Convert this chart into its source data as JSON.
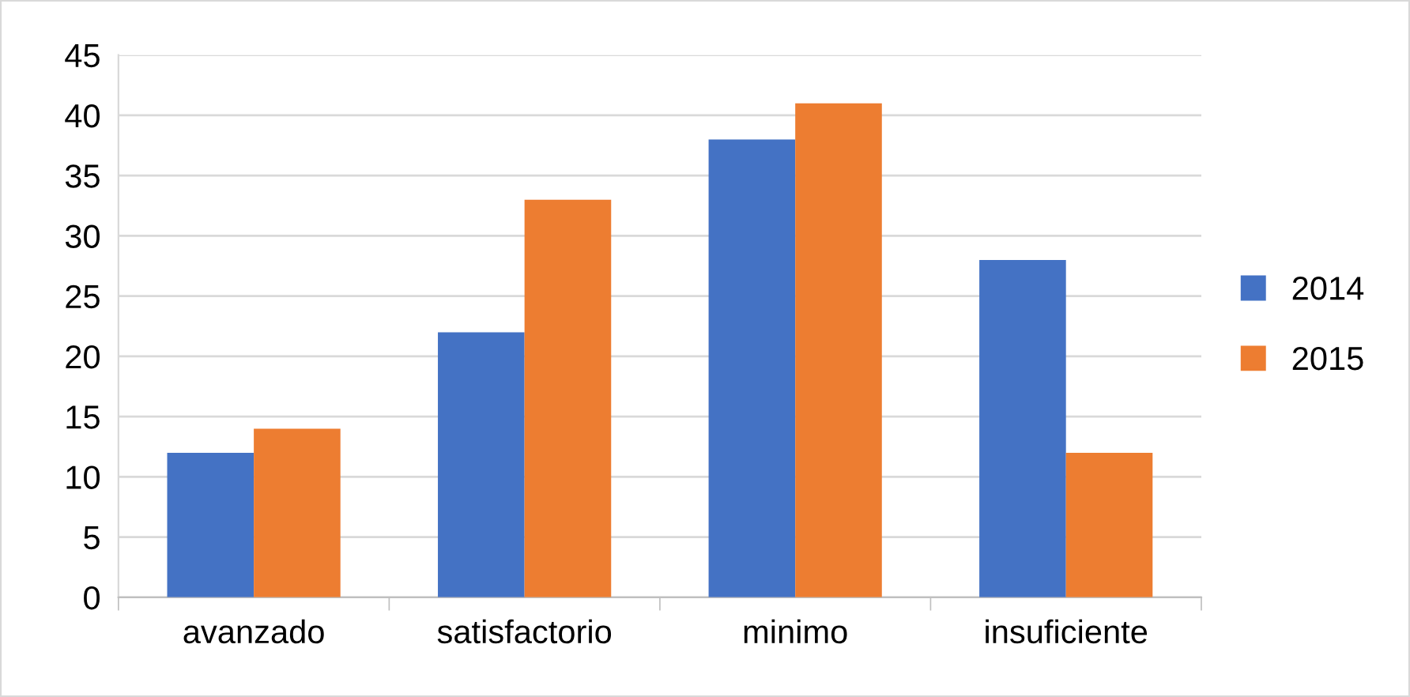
{
  "chart_data": {
    "type": "bar",
    "categories": [
      "avanzado",
      "satisfactorio",
      "minimo",
      "insuficiente"
    ],
    "series": [
      {
        "name": "2014",
        "color": "#4472c4",
        "values": [
          12,
          22,
          38,
          28
        ]
      },
      {
        "name": "2015",
        "color": "#ed7d31",
        "values": [
          14,
          33,
          41,
          12
        ]
      }
    ],
    "ylim": [
      0,
      45
    ],
    "yticks": [
      0,
      5,
      10,
      15,
      20,
      25,
      30,
      35,
      40,
      45
    ],
    "grid": "y",
    "legend": "right"
  }
}
